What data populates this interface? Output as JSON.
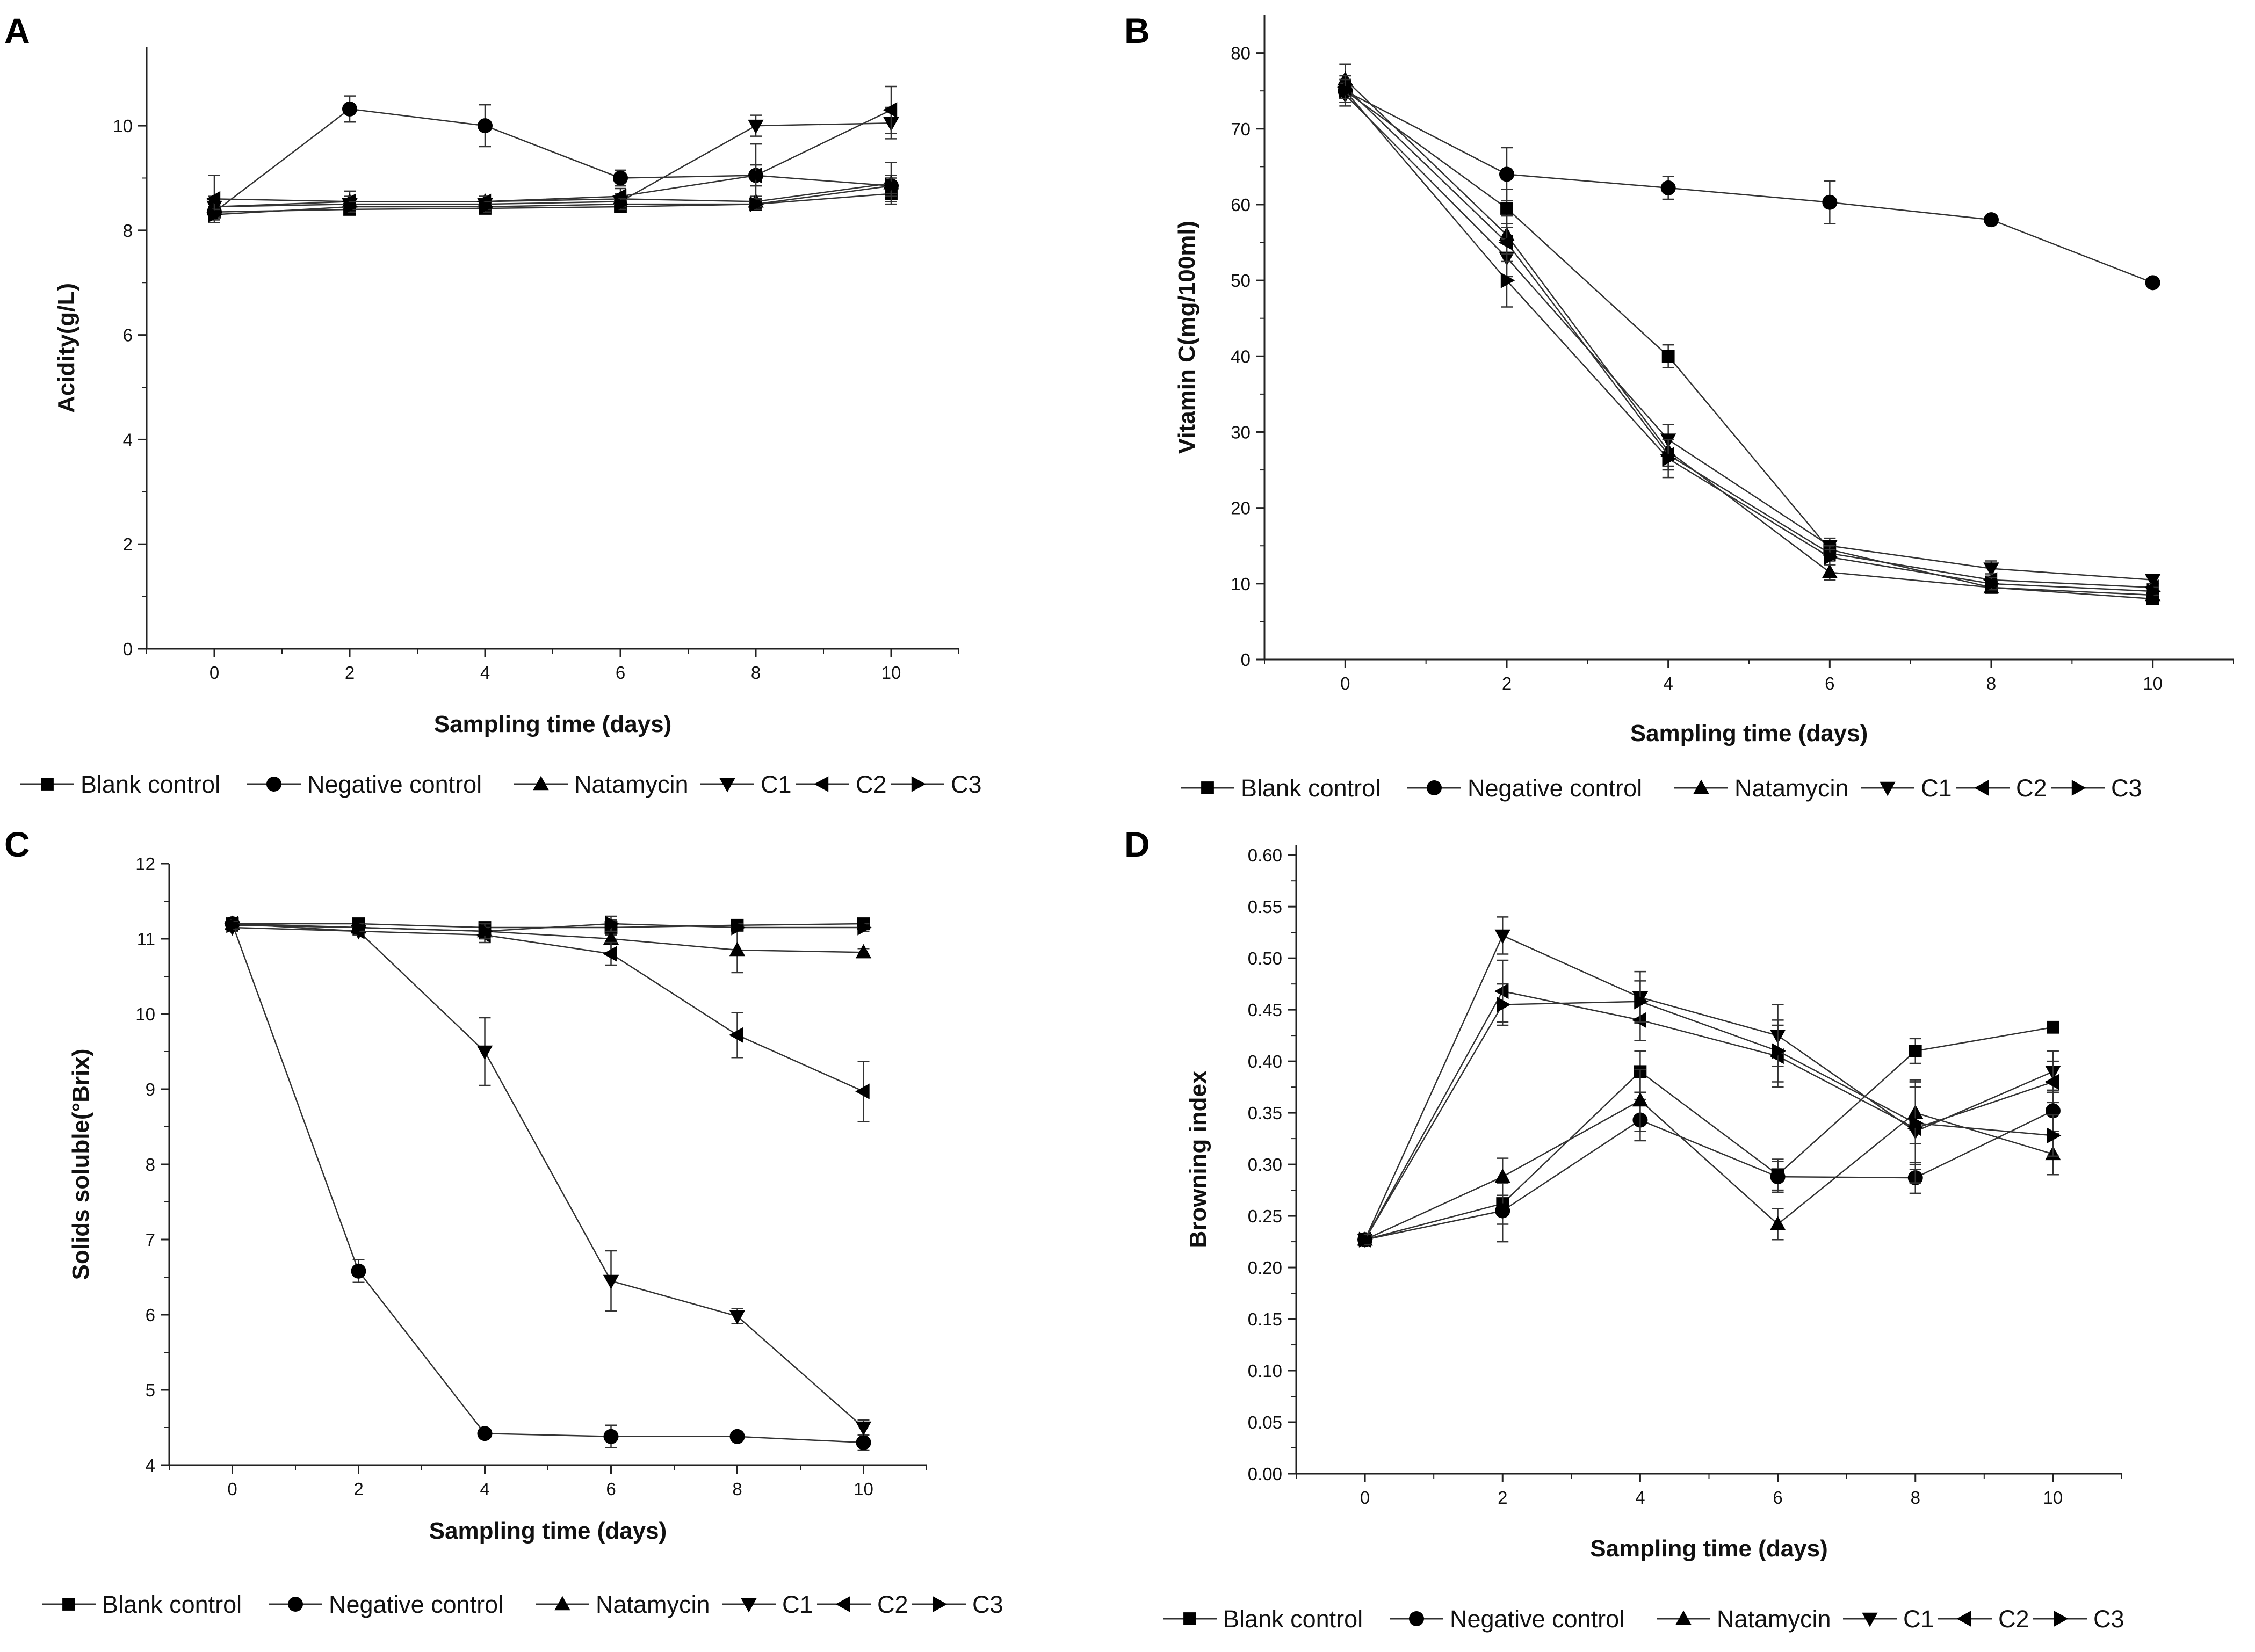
{
  "chart_data": [
    {
      "panel": "A",
      "type": "line",
      "xlabel": "Sampling time (days)",
      "ylabel": "Acidity(g/L)",
      "x": [
        0,
        2,
        4,
        6,
        8,
        10
      ],
      "xlim": [
        -1,
        11
      ],
      "xticks": [
        "0",
        "2",
        "4",
        "6",
        "8",
        "10"
      ],
      "ylim": [
        0,
        11.5
      ],
      "yticks": [
        "0",
        "2",
        "4",
        "6",
        "8",
        "10"
      ],
      "series": [
        {
          "name": "Blank control",
          "marker": "square",
          "values": [
            8.35,
            8.4,
            8.42,
            8.45,
            8.5,
            8.7
          ],
          "errors": [
            0.1,
            0.1,
            0.1,
            0.1,
            0.08,
            0.15
          ]
        },
        {
          "name": "Negative control",
          "marker": "circle",
          "values": [
            8.35,
            10.32,
            10.0,
            9.0,
            9.05,
            8.85
          ],
          "errors": [
            0.15,
            0.25,
            0.4,
            0.15,
            0.2,
            0.2
          ]
        },
        {
          "name": "Natamycin",
          "marker": "triangle-up",
          "values": [
            8.45,
            8.55,
            8.55,
            8.6,
            8.55,
            8.9
          ],
          "errors": [
            0.1,
            0.2,
            0.1,
            0.1,
            0.1,
            0.4
          ]
        },
        {
          "name": "C1",
          "marker": "triangle-down",
          "values": [
            8.45,
            8.5,
            8.5,
            8.55,
            10.0,
            10.05
          ],
          "errors": [
            0.2,
            0.1,
            0.1,
            0.1,
            0.2,
            0.3
          ]
        },
        {
          "name": "C2",
          "marker": "triangle-left",
          "values": [
            8.6,
            8.55,
            8.55,
            8.65,
            9.05,
            10.3
          ],
          "errors": [
            0.45,
            0.1,
            0.1,
            0.15,
            0.6,
            0.45
          ]
        },
        {
          "name": "C3",
          "marker": "triangle-right",
          "values": [
            8.3,
            8.45,
            8.45,
            8.5,
            8.5,
            8.85
          ],
          "errors": [
            0.1,
            0.1,
            0.1,
            0.1,
            0.1,
            0.15
          ]
        }
      ]
    },
    {
      "panel": "B",
      "type": "line",
      "xlabel": "Sampling time (days)",
      "ylabel": "Vitamin C(mg/100ml)",
      "x": [
        0,
        2,
        4,
        6,
        8,
        10
      ],
      "xlim": [
        -1,
        11
      ],
      "xticks": [
        "0",
        "2",
        "4",
        "6",
        "8",
        "10"
      ],
      "ylim": [
        0,
        85
      ],
      "yticks": [
        "0",
        "10",
        "20",
        "30",
        "40",
        "50",
        "60",
        "70",
        "80"
      ],
      "series": [
        {
          "name": "Blank control",
          "marker": "square",
          "values": [
            75.0,
            59.5,
            40.0,
            14.5,
            9.5,
            8.0
          ],
          "errors": [
            1.5,
            2.5,
            1.5,
            1.0,
            0.5,
            0.5
          ]
        },
        {
          "name": "Negative control",
          "marker": "circle",
          "values": [
            75.0,
            64.0,
            62.2,
            60.3,
            58.0,
            49.7
          ],
          "errors": [
            1.5,
            3.5,
            1.5,
            2.8,
            0.5,
            0.5
          ]
        },
        {
          "name": "Natamycin",
          "marker": "triangle-up",
          "values": [
            76.5,
            56.0,
            27.5,
            11.5,
            9.5,
            8.5
          ],
          "errors": [
            2.0,
            2.5,
            2.0,
            1.0,
            0.5,
            0.5
          ]
        },
        {
          "name": "C1",
          "marker": "triangle-down",
          "values": [
            74.5,
            53.0,
            29.0,
            15.0,
            12.0,
            10.5
          ],
          "errors": [
            1.5,
            2.5,
            2.0,
            1.0,
            1.0,
            0.5
          ]
        },
        {
          "name": "C2",
          "marker": "triangle-left",
          "values": [
            75.5,
            55.0,
            27.0,
            14.0,
            10.5,
            9.5
          ],
          "errors": [
            1.5,
            2.5,
            2.0,
            1.0,
            0.8,
            0.5
          ]
        },
        {
          "name": "C3",
          "marker": "triangle-right",
          "values": [
            75.0,
            50.0,
            26.5,
            13.5,
            10.0,
            9.0
          ],
          "errors": [
            1.5,
            3.5,
            2.5,
            1.0,
            0.8,
            0.5
          ]
        }
      ]
    },
    {
      "panel": "C",
      "type": "line",
      "xlabel": "Sampling time (days)",
      "ylabel": "Solids soluble(°Brix)",
      "x": [
        0,
        2,
        4,
        6,
        8,
        10
      ],
      "xlim": [
        -1,
        11
      ],
      "xticks": [
        "0",
        "2",
        "4",
        "6",
        "8",
        "10"
      ],
      "ylim": [
        4,
        12
      ],
      "yticks": [
        "4",
        "5",
        "6",
        "7",
        "8",
        "9",
        "10",
        "11",
        "12"
      ],
      "series": [
        {
          "name": "Blank control",
          "marker": "square",
          "values": [
            11.2,
            11.2,
            11.15,
            11.15,
            11.18,
            11.2
          ],
          "errors": [
            0.05,
            0.05,
            0.05,
            0.1,
            0.05,
            0.05
          ]
        },
        {
          "name": "Negative control",
          "marker": "circle",
          "values": [
            11.2,
            6.58,
            4.42,
            4.38,
            4.38,
            4.3
          ],
          "errors": [
            0.05,
            0.15,
            0.05,
            0.15,
            0.05,
            0.1
          ]
        },
        {
          "name": "Natamycin",
          "marker": "triangle-up",
          "values": [
            11.2,
            11.15,
            11.1,
            11.0,
            10.85,
            10.82
          ],
          "errors": [
            0.05,
            0.05,
            0.1,
            0.2,
            0.3,
            0.05
          ]
        },
        {
          "name": "C1",
          "marker": "triangle-down",
          "values": [
            11.15,
            11.1,
            9.5,
            6.45,
            5.98,
            4.5
          ],
          "errors": [
            0.05,
            0.05,
            0.45,
            0.4,
            0.1,
            0.1
          ]
        },
        {
          "name": "C2",
          "marker": "triangle-left",
          "values": [
            11.2,
            11.1,
            11.05,
            10.8,
            9.72,
            8.97
          ],
          "errors": [
            0.05,
            0.05,
            0.1,
            0.15,
            0.3,
            0.4
          ]
        },
        {
          "name": "C3",
          "marker": "triangle-right",
          "values": [
            11.18,
            11.15,
            11.1,
            11.2,
            11.15,
            11.15
          ],
          "errors": [
            0.05,
            0.05,
            0.1,
            0.1,
            0.05,
            0.05
          ]
        }
      ]
    },
    {
      "panel": "D",
      "type": "line",
      "xlabel": "Sampling time (days)",
      "ylabel": "Browning index",
      "x": [
        0,
        2,
        4,
        6,
        8,
        10
      ],
      "xlim": [
        -1,
        11
      ],
      "xticks": [
        "0",
        "2",
        "4",
        "6",
        "8",
        "10"
      ],
      "ylim": [
        0,
        0.61
      ],
      "yticks": [
        "0.00",
        "0.05",
        "0.10",
        "0.15",
        "0.20",
        "0.25",
        "0.30",
        "0.35",
        "0.40",
        "0.45",
        "0.50",
        "0.55",
        "0.60"
      ],
      "series": [
        {
          "name": "Blank control",
          "marker": "square",
          "values": [
            0.227,
            0.262,
            0.39,
            0.29,
            0.41,
            0.433
          ],
          "errors": [
            0.005,
            0.02,
            0.02,
            0.015,
            0.012,
            0.005
          ]
        },
        {
          "name": "Negative control",
          "marker": "circle",
          "values": [
            0.227,
            0.255,
            0.343,
            0.288,
            0.287,
            0.352
          ],
          "errors": [
            0.005,
            0.03,
            0.02,
            0.015,
            0.015,
            0.02
          ]
        },
        {
          "name": "Natamycin",
          "marker": "triangle-up",
          "values": [
            0.227,
            0.288,
            0.362,
            0.242,
            0.35,
            0.31
          ],
          "errors": [
            0.005,
            0.018,
            0.03,
            0.015,
            0.03,
            0.02
          ]
        },
        {
          "name": "C1",
          "marker": "triangle-down",
          "values": [
            0.227,
            0.522,
            0.462,
            0.425,
            0.332,
            0.39
          ],
          "errors": [
            0.005,
            0.018,
            0.025,
            0.03,
            0.05,
            0.02
          ]
        },
        {
          "name": "C2",
          "marker": "triangle-left",
          "values": [
            0.227,
            0.468,
            0.44,
            0.405,
            0.335,
            0.38
          ],
          "errors": [
            0.005,
            0.03,
            0.02,
            0.03,
            0.04,
            0.02
          ]
        },
        {
          "name": "C3",
          "marker": "triangle-right",
          "values": [
            0.227,
            0.455,
            0.458,
            0.41,
            0.34,
            0.328
          ],
          "errors": [
            0.005,
            0.02,
            0.02,
            0.03,
            0.04,
            0.02
          ]
        }
      ]
    }
  ]
}
